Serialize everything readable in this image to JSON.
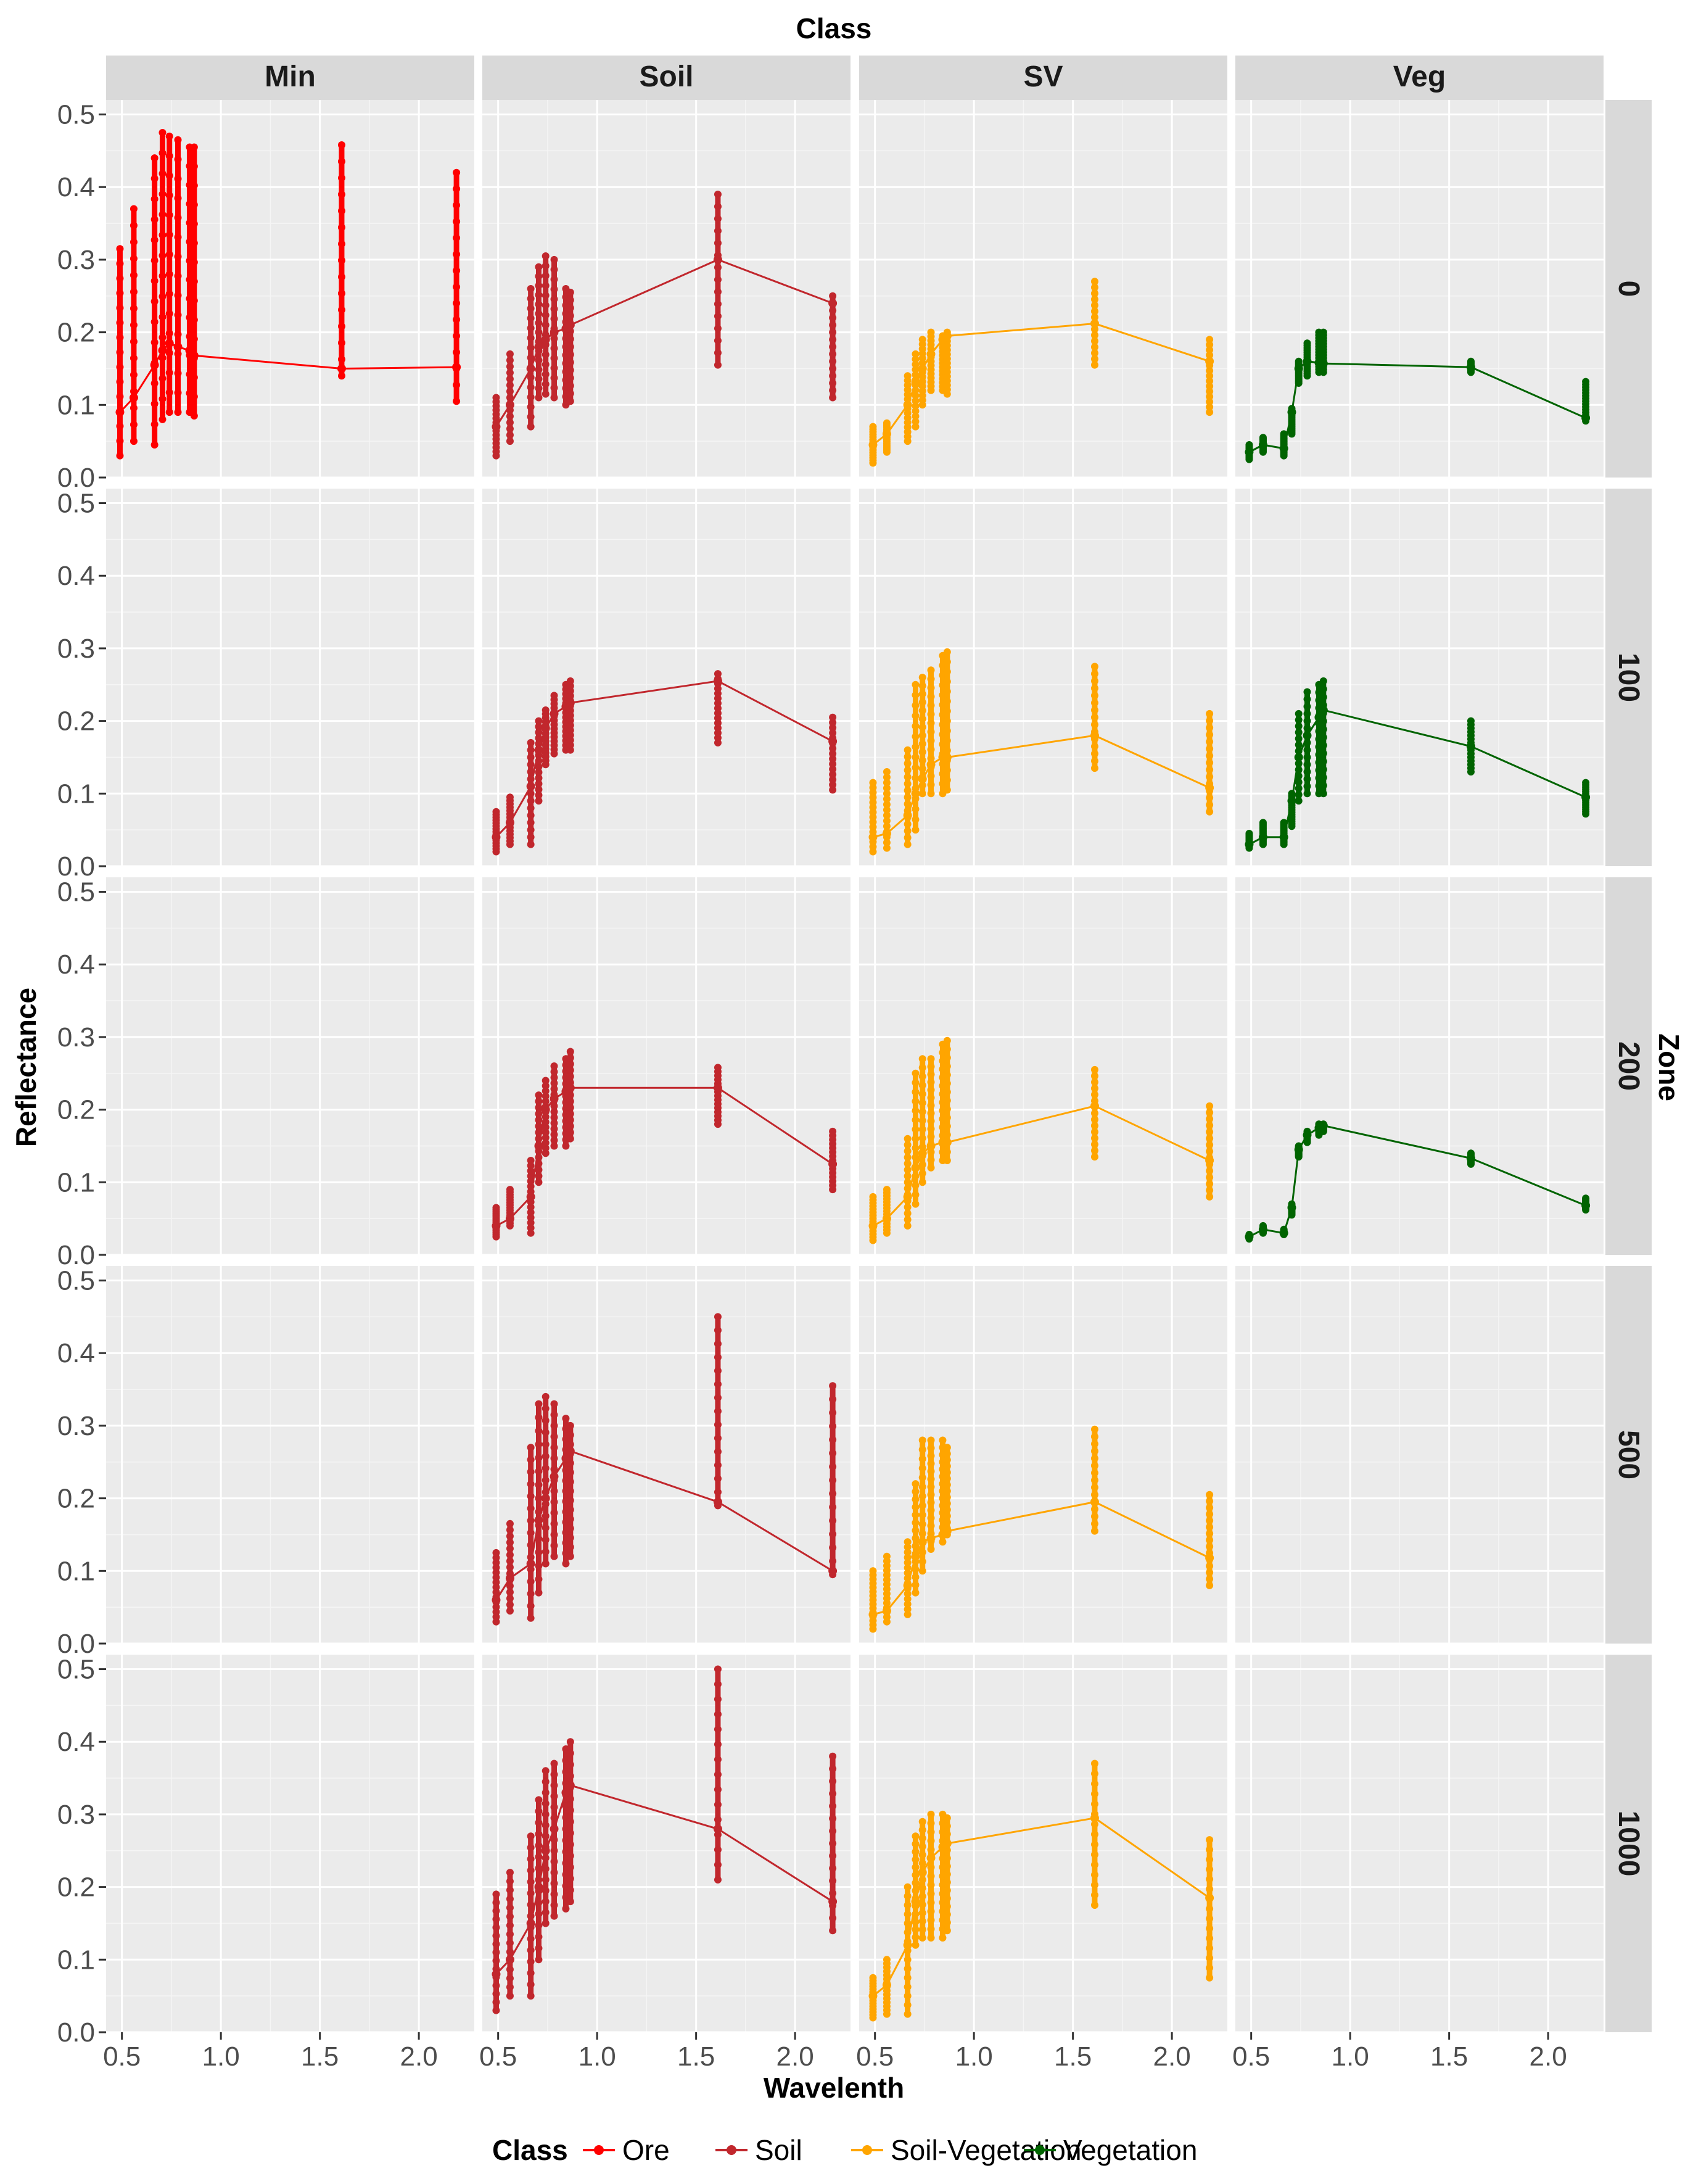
{
  "chart_data": {
    "type": "line",
    "title": "Class",
    "xlabel": "Wavelenth",
    "ylabel": "Reflectance",
    "facet_col_title": "Class",
    "facet_row_title": "Zone",
    "columns": [
      "Min",
      "Soil",
      "SV",
      "Veg"
    ],
    "rows": [
      "0",
      "100",
      "200",
      "500",
      "1000"
    ],
    "xlim": [
      0.42,
      2.28
    ],
    "ylim": [
      0.0,
      0.52
    ],
    "x_ticks": [
      0.5,
      1.0,
      1.5,
      2.0
    ],
    "x_tick_labels": [
      "0.5",
      "1.0",
      "1.5",
      "2.0"
    ],
    "y_ticks": [
      0.0,
      0.1,
      0.2,
      0.3,
      0.4,
      0.5
    ],
    "y_tick_labels": [
      "0.0",
      "0.1",
      "0.2",
      "0.3",
      "0.4",
      "0.5"
    ],
    "grid": true,
    "legend": {
      "title": "Class",
      "position": "bottom",
      "entries": [
        {
          "label": "Ore",
          "color": "#ff0000"
        },
        {
          "label": "Soil",
          "color": "#c1272d"
        },
        {
          "label": "Soil-Vegetation",
          "color": "#ffa500"
        },
        {
          "label": "Vegetation",
          "color": "#006400"
        }
      ]
    },
    "bands": [
      0.49,
      0.56,
      0.665,
      0.705,
      0.74,
      0.783,
      0.842,
      0.865,
      1.61,
      2.19
    ],
    "panels": [
      {
        "col": "Min",
        "row": "0",
        "series": "Ore",
        "mean": [
          0.09,
          0.11,
          0.155,
          0.175,
          0.185,
          0.18,
          0.175,
          0.168,
          0.15,
          0.152
        ],
        "min": [
          0.03,
          0.05,
          0.045,
          0.08,
          0.09,
          0.09,
          0.09,
          0.085,
          0.14,
          0.105
        ],
        "max": [
          0.315,
          0.37,
          0.44,
          0.475,
          0.47,
          0.465,
          0.455,
          0.455,
          0.458,
          0.42
        ]
      },
      {
        "col": "Soil",
        "row": "0",
        "series": "Soil",
        "mean": [
          0.07,
          0.1,
          0.15,
          0.18,
          0.19,
          0.2,
          0.205,
          0.21,
          0.3,
          0.24
        ],
        "min": [
          0.03,
          0.05,
          0.07,
          0.11,
          0.115,
          0.11,
          0.1,
          0.105,
          0.155,
          0.11
        ],
        "max": [
          0.11,
          0.17,
          0.26,
          0.29,
          0.305,
          0.3,
          0.26,
          0.255,
          0.39,
          0.25
        ]
      },
      {
        "col": "SV",
        "row": "0",
        "series": "Soil-Vegetation",
        "mean": [
          0.045,
          0.06,
          0.1,
          0.13,
          0.15,
          0.17,
          0.19,
          0.195,
          0.212,
          0.16
        ],
        "min": [
          0.02,
          0.035,
          0.05,
          0.07,
          0.1,
          0.12,
          0.12,
          0.115,
          0.155,
          0.09
        ],
        "max": [
          0.07,
          0.075,
          0.14,
          0.17,
          0.19,
          0.2,
          0.195,
          0.2,
          0.27,
          0.19
        ]
      },
      {
        "col": "Veg",
        "row": "0",
        "series": "Vegetation",
        "mean": [
          0.035,
          0.045,
          0.04,
          0.09,
          0.15,
          0.16,
          0.158,
          0.157,
          0.152,
          0.082
        ],
        "min": [
          0.025,
          0.035,
          0.03,
          0.06,
          0.13,
          0.14,
          0.145,
          0.145,
          0.145,
          0.078
        ],
        "max": [
          0.045,
          0.055,
          0.06,
          0.095,
          0.16,
          0.185,
          0.2,
          0.2,
          0.16,
          0.132
        ]
      },
      {
        "col": "Soil",
        "row": "100",
        "series": "Soil",
        "mean": [
          0.04,
          0.06,
          0.11,
          0.16,
          0.19,
          0.21,
          0.22,
          0.225,
          0.255,
          0.172
        ],
        "min": [
          0.02,
          0.03,
          0.03,
          0.09,
          0.14,
          0.155,
          0.16,
          0.16,
          0.17,
          0.105
        ],
        "max": [
          0.075,
          0.095,
          0.17,
          0.2,
          0.215,
          0.235,
          0.25,
          0.255,
          0.265,
          0.205
        ]
      },
      {
        "col": "SV",
        "row": "100",
        "series": "Soil-Vegetation",
        "mean": [
          0.04,
          0.045,
          0.07,
          0.1,
          0.12,
          0.14,
          0.15,
          0.15,
          0.18,
          0.108
        ],
        "min": [
          0.02,
          0.025,
          0.03,
          0.05,
          0.1,
          0.1,
          0.1,
          0.105,
          0.135,
          0.075
        ],
        "max": [
          0.115,
          0.13,
          0.16,
          0.25,
          0.26,
          0.27,
          0.29,
          0.295,
          0.275,
          0.21
        ]
      },
      {
        "col": "Veg",
        "row": "100",
        "series": "Vegetation",
        "mean": [
          0.03,
          0.04,
          0.04,
          0.09,
          0.15,
          0.18,
          0.205,
          0.215,
          0.165,
          0.095
        ],
        "min": [
          0.025,
          0.03,
          0.03,
          0.055,
          0.09,
          0.1,
          0.1,
          0.1,
          0.13,
          0.072
        ],
        "max": [
          0.045,
          0.06,
          0.06,
          0.1,
          0.21,
          0.24,
          0.25,
          0.255,
          0.2,
          0.115
        ]
      },
      {
        "col": "Soil",
        "row": "200",
        "series": "Soil",
        "mean": [
          0.04,
          0.05,
          0.08,
          0.15,
          0.2,
          0.215,
          0.225,
          0.23,
          0.23,
          0.125
        ],
        "min": [
          0.025,
          0.04,
          0.03,
          0.1,
          0.14,
          0.15,
          0.15,
          0.16,
          0.18,
          0.09
        ],
        "max": [
          0.065,
          0.09,
          0.13,
          0.22,
          0.24,
          0.26,
          0.27,
          0.28,
          0.258,
          0.17
        ]
      },
      {
        "col": "SV",
        "row": "200",
        "series": "Soil-Vegetation",
        "mean": [
          0.04,
          0.05,
          0.08,
          0.12,
          0.14,
          0.15,
          0.155,
          0.155,
          0.205,
          0.13
        ],
        "min": [
          0.02,
          0.03,
          0.04,
          0.07,
          0.1,
          0.12,
          0.13,
          0.13,
          0.135,
          0.08
        ],
        "max": [
          0.08,
          0.09,
          0.16,
          0.25,
          0.27,
          0.27,
          0.29,
          0.295,
          0.255,
          0.205
        ]
      },
      {
        "col": "Veg",
        "row": "200",
        "series": "Vegetation",
        "mean": [
          0.025,
          0.035,
          0.03,
          0.065,
          0.145,
          0.165,
          0.175,
          0.178,
          0.133,
          0.068
        ],
        "min": [
          0.022,
          0.03,
          0.028,
          0.055,
          0.135,
          0.155,
          0.165,
          0.17,
          0.125,
          0.062
        ],
        "max": [
          0.028,
          0.04,
          0.035,
          0.07,
          0.15,
          0.17,
          0.18,
          0.18,
          0.14,
          0.078
        ]
      },
      {
        "col": "Soil",
        "row": "500",
        "series": "Soil",
        "mean": [
          0.06,
          0.09,
          0.11,
          0.17,
          0.2,
          0.23,
          0.255,
          0.265,
          0.195,
          0.1
        ],
        "min": [
          0.03,
          0.045,
          0.035,
          0.07,
          0.11,
          0.12,
          0.11,
          0.12,
          0.19,
          0.095
        ],
        "max": [
          0.125,
          0.165,
          0.27,
          0.33,
          0.34,
          0.33,
          0.31,
          0.3,
          0.45,
          0.355
        ]
      },
      {
        "col": "SV",
        "row": "500",
        "series": "Soil-Vegetation",
        "mean": [
          0.04,
          0.045,
          0.08,
          0.12,
          0.14,
          0.145,
          0.15,
          0.155,
          0.195,
          0.118
        ],
        "min": [
          0.02,
          0.03,
          0.04,
          0.07,
          0.1,
          0.13,
          0.14,
          0.15,
          0.155,
          0.08
        ],
        "max": [
          0.1,
          0.12,
          0.14,
          0.22,
          0.28,
          0.28,
          0.28,
          0.27,
          0.295,
          0.205
        ]
      },
      {
        "col": "Soil",
        "row": "1000",
        "series": "Soil",
        "mean": [
          0.08,
          0.1,
          0.15,
          0.2,
          0.25,
          0.28,
          0.33,
          0.34,
          0.28,
          0.18
        ],
        "min": [
          0.03,
          0.05,
          0.05,
          0.1,
          0.15,
          0.16,
          0.17,
          0.18,
          0.21,
          0.14
        ],
        "max": [
          0.19,
          0.22,
          0.27,
          0.32,
          0.36,
          0.37,
          0.39,
          0.4,
          0.5,
          0.38
        ]
      },
      {
        "col": "SV",
        "row": "1000",
        "series": "Soil-Vegetation",
        "mean": [
          0.05,
          0.065,
          0.12,
          0.18,
          0.22,
          0.24,
          0.255,
          0.26,
          0.295,
          0.185
        ],
        "min": [
          0.02,
          0.025,
          0.025,
          0.12,
          0.13,
          0.13,
          0.13,
          0.14,
          0.175,
          0.075
        ],
        "max": [
          0.075,
          0.1,
          0.2,
          0.27,
          0.29,
          0.3,
          0.3,
          0.295,
          0.37,
          0.265
        ]
      }
    ]
  }
}
